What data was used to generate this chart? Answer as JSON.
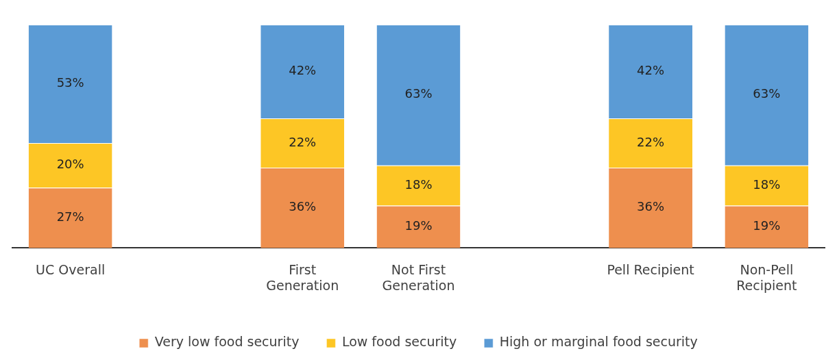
{
  "chart_data": {
    "type": "bar",
    "stacked": true,
    "legend": "bottom",
    "categories": [
      "UC Overall",
      null,
      "First\nGeneration",
      "Not First\nGeneration",
      null,
      "Pell Recipient",
      "Non-Pell\nRecipient"
    ],
    "series": [
      {
        "name": "Very low food security",
        "color": "#ee8f4e",
        "values": [
          27,
          null,
          36,
          19,
          null,
          36,
          19
        ],
        "value_labels": [
          "27%",
          null,
          "36%",
          "19%",
          null,
          "36%",
          "19%"
        ]
      },
      {
        "name": "Low food security",
        "color": "#fdc625",
        "values": [
          20,
          null,
          22,
          18,
          null,
          22,
          18
        ],
        "value_labels": [
          "20%",
          null,
          "22%",
          "18%",
          null,
          "22%",
          "18%"
        ]
      },
      {
        "name": "High or marginal food security",
        "color": "#5b9bd5",
        "values": [
          53,
          null,
          42,
          63,
          null,
          42,
          63
        ],
        "value_labels": [
          "53%",
          null,
          "42%",
          "63%",
          null,
          "42%",
          "63%"
        ]
      }
    ]
  }
}
